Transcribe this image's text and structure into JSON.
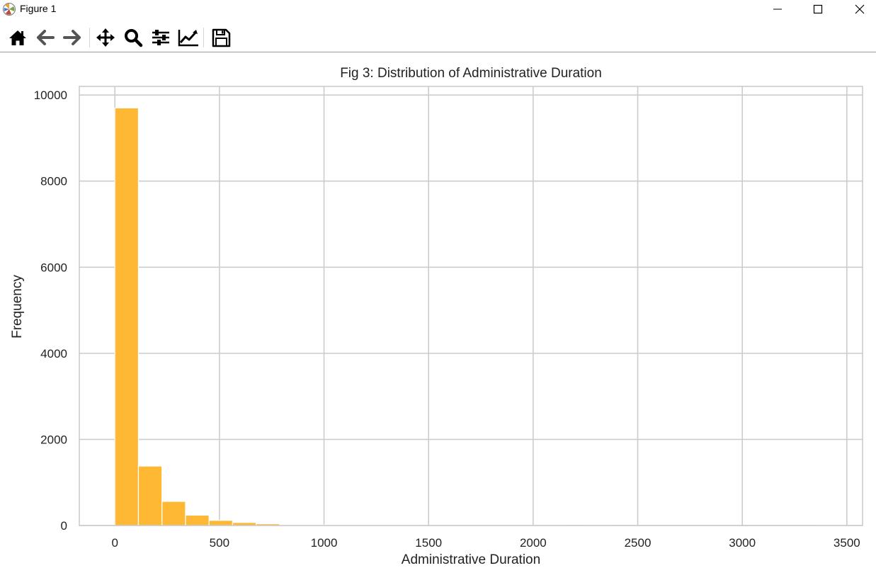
{
  "window": {
    "title": "Figure 1",
    "icon": "matplotlib-logo-icon",
    "controls": [
      "minimize-icon",
      "maximize-icon",
      "close-icon"
    ]
  },
  "toolbar": {
    "buttons": [
      {
        "name": "home",
        "icon": "home-icon"
      },
      {
        "name": "back",
        "icon": "arrow-left-icon"
      },
      {
        "name": "forward",
        "icon": "arrow-right-icon"
      },
      {
        "name": "pan",
        "icon": "move-icon"
      },
      {
        "name": "zoom",
        "icon": "magnifier-icon"
      },
      {
        "name": "configure-subplots",
        "icon": "sliders-icon"
      },
      {
        "name": "edit-axis",
        "icon": "line-chart-icon"
      },
      {
        "name": "save",
        "icon": "floppy-disk-icon"
      }
    ]
  },
  "chart_data": {
    "type": "bar",
    "title": "Fig 3: Distribution of Administrative Duration",
    "xlabel": "Administrative Duration",
    "ylabel": "Frequency",
    "xlim": [
      -170,
      3575
    ],
    "ylim": [
      0,
      10200
    ],
    "xticks": [
      0,
      500,
      1000,
      1500,
      2000,
      2500,
      3000,
      3500
    ],
    "xtick_labels": [
      "0",
      "500",
      "1000",
      "1500",
      "2000",
      "2500",
      "3000",
      "3500"
    ],
    "yticks": [
      0,
      2000,
      4000,
      6000,
      8000,
      10000
    ],
    "ytick_labels": [
      "0",
      "2000",
      "4000",
      "6000",
      "8000",
      "10000"
    ],
    "bin_width": 112.6,
    "bin_edges_start": 0,
    "values": [
      9700,
      1380,
      560,
      240,
      120,
      70,
      40,
      20,
      12,
      8,
      6,
      4,
      3,
      2,
      2,
      1,
      1,
      1,
      1,
      0,
      1,
      0,
      0,
      0,
      0,
      0,
      0,
      0,
      0,
      0,
      1
    ],
    "bar_color": "#ffb833",
    "grid": true,
    "legend": "none"
  }
}
